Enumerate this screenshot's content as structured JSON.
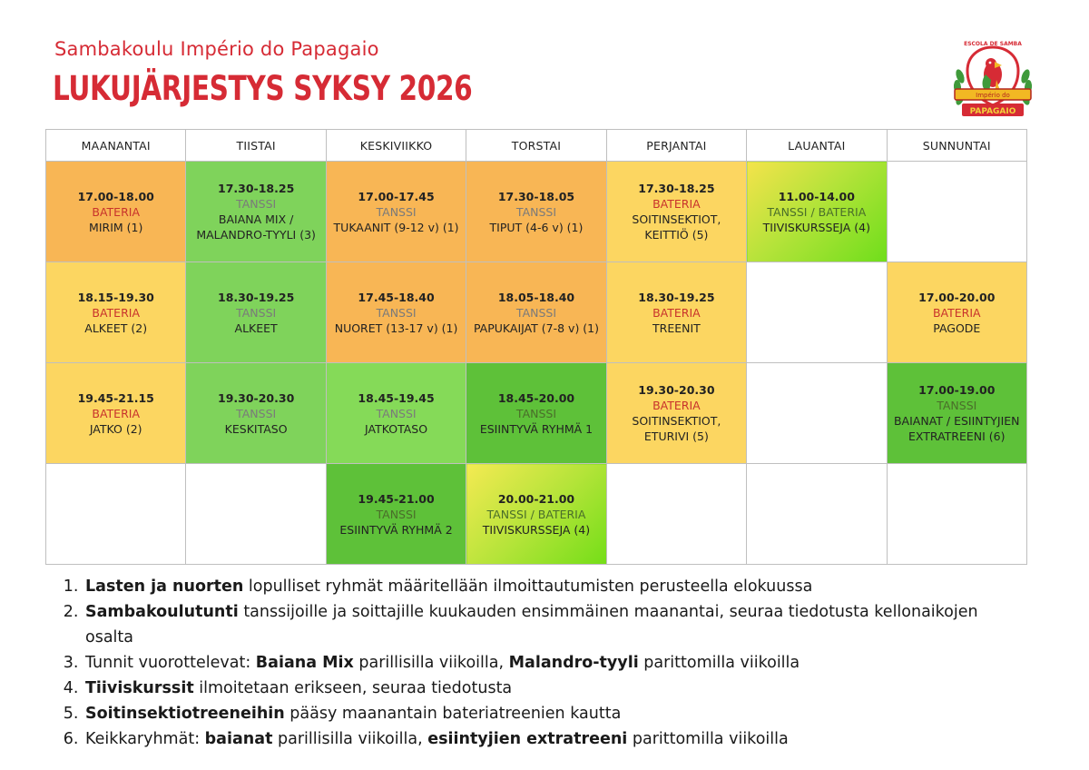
{
  "header": {
    "school_name": "Sambakoulu Império do Papagaio",
    "title": "LUKUJÄRJESTYS SYKSY 2026",
    "logo": {
      "top_text": "ESCOLA DE SAMBA",
      "banner_text": "Império do",
      "bottom_text": "PAPAGAIO"
    }
  },
  "days": [
    "MAANANTAI",
    "TIISTAI",
    "KESKIVIIKKO",
    "TORSTAI",
    "PERJANTAI",
    "LAUANTAI",
    "SUNNUNTAI"
  ],
  "rows": [
    [
      {
        "time": "17.00-18.00",
        "type": "BATERIA",
        "desc": "MIRIM (1)",
        "color": "orange"
      },
      {
        "time": "17.30-18.25",
        "type": "TANSSI",
        "desc": "BAIANA MIX / MALANDRO-TYYLI (3)",
        "color": "green"
      },
      {
        "time": "17.00-17.45",
        "type": "TANSSI",
        "desc": "TUKAANIT (9-12 v) (1)",
        "color": "orange"
      },
      {
        "time": "17.30-18.05",
        "type": "TANSSI",
        "desc": "TIPUT (4-6 v) (1)",
        "color": "orange"
      },
      {
        "time": "17.30-18.25",
        "type": "BATERIA",
        "desc": "SOITINSEKTIOT, KEITTIÖ (5)",
        "color": "yellow"
      },
      {
        "time": "11.00-14.00",
        "type": "TANSSI / BATERIA",
        "desc": "TIIVISKURSSEJA (4)",
        "color": "grad1"
      },
      null
    ],
    [
      {
        "time": "18.15-19.30",
        "type": "BATERIA",
        "desc": "ALKEET (2)",
        "color": "yellow"
      },
      {
        "time": "18.30-19.25",
        "type": "TANSSI",
        "desc": "ALKEET",
        "color": "green"
      },
      {
        "time": "17.45-18.40",
        "type": "TANSSI",
        "desc": "NUORET (13-17 v) (1)",
        "color": "orange"
      },
      {
        "time": "18.05-18.40",
        "type": "TANSSI",
        "desc": "PAPUKAIJAT (7-8 v) (1)",
        "color": "orange"
      },
      {
        "time": "18.30-19.25",
        "type": "BATERIA",
        "desc": "TREENIT",
        "color": "yellow"
      },
      null,
      {
        "time": "17.00-20.00",
        "type": "BATERIA",
        "desc": "PAGODE",
        "color": "yellow"
      }
    ],
    [
      {
        "time": "19.45-21.15",
        "type": "BATERIA",
        "desc": "JATKO (2)",
        "color": "yellow"
      },
      {
        "time": "19.30-20.30",
        "type": "TANSSI",
        "desc": "KESKITASO",
        "color": "green"
      },
      {
        "time": "18.45-19.45",
        "type": "TANSSI",
        "desc": "JATKOTASO",
        "color": "lgreen"
      },
      {
        "time": "18.45-20.00",
        "type": "TANSSI",
        "desc": "ESIINTYVÄ RYHMÄ 1",
        "color": "dgreen"
      },
      {
        "time": "19.30-20.30",
        "type": "BATERIA",
        "desc": "SOITINSEKTIOT, ETURIVI (5)",
        "color": "yellow"
      },
      null,
      {
        "time": "17.00-19.00",
        "type": "TANSSI",
        "desc": "BAIANAT / ESIINTYJIEN EXTRATREENI (6)",
        "color": "dgreen"
      }
    ],
    [
      null,
      null,
      {
        "time": "19.45-21.00",
        "type": "TANSSI",
        "desc": "ESIINTYVÄ RYHMÄ 2",
        "color": "dgreen"
      },
      {
        "time": "20.00-21.00",
        "type": "TANSSI / BATERIA",
        "desc": "TIIVISKURSSEJA (4)",
        "color": "grad2"
      },
      null,
      null,
      null
    ]
  ],
  "notes": [
    {
      "bold": "Lasten ja nuorten",
      "text": " lopulliset ryhmät määritellään ilmoittautumisten perusteella elokuussa"
    },
    {
      "bold": "Sambakoulutunti",
      "text": " tanssijoille ja soittajille kuukauden ensimmäinen maanantai, seuraa tiedotusta kellonaikojen osalta"
    },
    {
      "pre": "Tunnit vuorottelevat: ",
      "bold": "Baiana Mix",
      "mid": " parillisilla viikoilla, ",
      "bold2": "Malandro-tyyli",
      "text": " parittomilla viikoilla"
    },
    {
      "bold": "Tiiviskurssit",
      "text": " ilmoitetaan erikseen, seuraa tiedotusta"
    },
    {
      "bold": "Soitinsektiotreeneihin",
      "text": " pääsy maanantain bateriatreenien kautta"
    },
    {
      "pre": "Keikkaryhmät: ",
      "bold": "baianat",
      "mid": " parillisilla viikoilla, ",
      "bold2": "esiintyjien extratreeni",
      "text": " parittomilla viikoilla"
    }
  ],
  "colors": {
    "accent": "#d62b35",
    "orange": "#f8b655",
    "yellow": "#fcd661",
    "green": "#7fd35b",
    "dgreen": "#5ec139"
  }
}
